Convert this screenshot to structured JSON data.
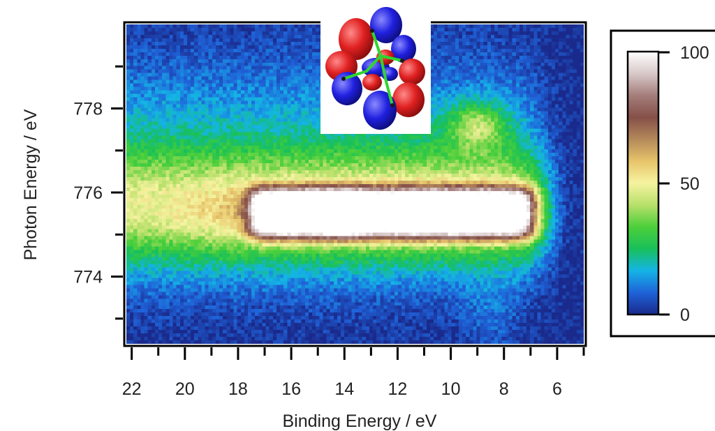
{
  "chart_data": {
    "type": "heatmap",
    "title": "",
    "xlabel": "Binding Energy / eV",
    "ylabel": "Photon Energy / eV",
    "xlim": [
      22.2,
      5.0
    ],
    "ylim": [
      772.4,
      780.0
    ],
    "x_ticks": [
      22,
      20,
      18,
      16,
      14,
      12,
      10,
      8,
      6
    ],
    "x_minor_ticks": [
      21,
      19,
      17,
      15,
      13,
      11,
      9,
      7,
      5
    ],
    "y_ticks": [
      774,
      776,
      778
    ],
    "y_minor_ticks": [
      773,
      775,
      777,
      779
    ],
    "grid": false,
    "colorbar": {
      "min": 0,
      "max": 100,
      "ticks": [
        0,
        50,
        100
      ],
      "colors": [
        "#1a2a8c",
        "#1f62d8",
        "#14b4e6",
        "#18c05a",
        "#4ccf3a",
        "#b8e06a",
        "#f6f3a0",
        "#e7c46a",
        "#b4885a",
        "#855048",
        "#a47d7a",
        "#d8c9c9",
        "#ffffff"
      ]
    },
    "features": [
      {
        "name": "resonance-band",
        "photon_energy_center": 775.5,
        "binding_energy_range": [
          17.5,
          6.9
        ],
        "peak_intensity": 100
      },
      {
        "name": "upper-feature",
        "photon_energy_center": 777.6,
        "binding_energy_center": 9.0,
        "peak_intensity": 45
      }
    ],
    "inset": {
      "description_icon": "molecular-orbital-icon"
    }
  }
}
